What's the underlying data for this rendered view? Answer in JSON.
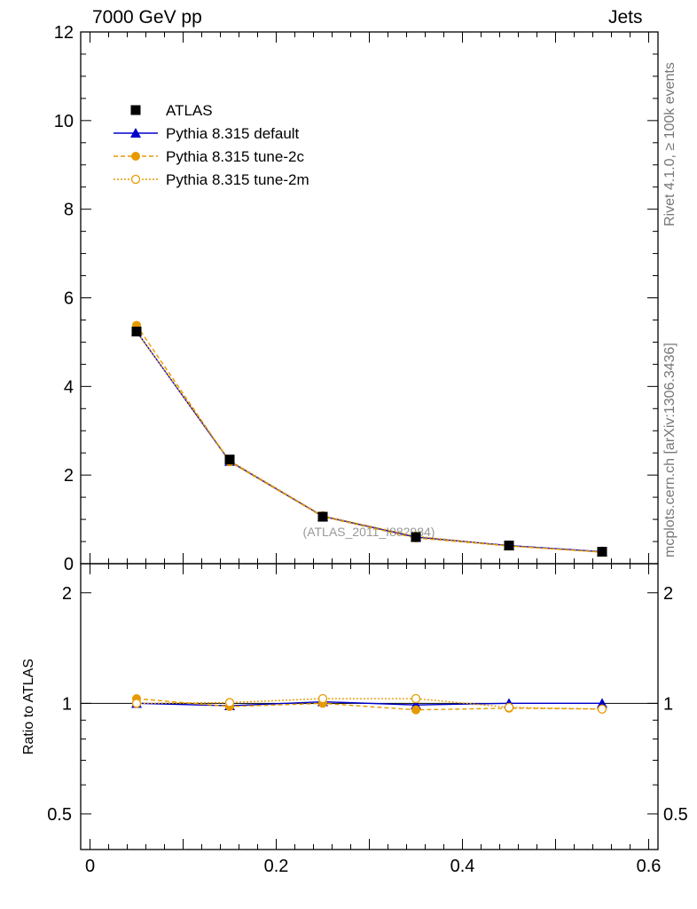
{
  "header": {
    "left_label": "7000 GeV pp",
    "right_label": "Jets"
  },
  "side_labels": {
    "rivet": "Rivet 4.1.0, ≥ 100k events",
    "mcplots": "mcplots.cern.ch [arXiv:1306.3436]"
  },
  "chart_data": {
    "type": "line",
    "analysis_label": "(ATLAS_2011_I882984)",
    "x": [
      0.05,
      0.15,
      0.25,
      0.35,
      0.45,
      0.55
    ],
    "xlim": [
      -0.01,
      0.61
    ],
    "xticks": [
      0,
      0.2,
      0.4,
      0.6
    ],
    "xtick_labels": [
      "0",
      "0.2",
      "0.4",
      "0.6"
    ],
    "main": {
      "ylim": [
        0,
        12
      ],
      "yticks": [
        0,
        2,
        4,
        6,
        8,
        10,
        12
      ],
      "ytick_labels": [
        "0",
        "2",
        "4",
        "6",
        "8",
        "10",
        "12"
      ]
    },
    "ratio": {
      "ylabel": "Ratio to ATLAS",
      "ylim": [
        0.4,
        2.4
      ],
      "yticks": [
        0.5,
        1,
        2
      ],
      "ytick_labels": [
        "0.5",
        "1",
        "2"
      ]
    },
    "series": [
      {
        "name": "ATLAS",
        "color": "#000000",
        "marker": "square",
        "line": "none",
        "values": [
          5.24,
          2.35,
          1.06,
          0.6,
          0.41,
          0.27
        ],
        "ratio": [
          1.0,
          1.0,
          1.0,
          1.0,
          1.0,
          1.0
        ]
      },
      {
        "name": "Pythia 8.315 default",
        "color": "#0000cc",
        "marker": "triangle",
        "line": "solid",
        "values": [
          5.24,
          2.31,
          1.07,
          0.6,
          0.41,
          0.27
        ],
        "ratio": [
          1.0,
          0.985,
          1.01,
          0.99,
          1.0,
          1.0
        ]
      },
      {
        "name": "Pythia 8.315 tune-2c",
        "color": "#e69a00",
        "marker": "circle-filled",
        "line": "dashed",
        "values": [
          5.38,
          2.3,
          1.06,
          0.58,
          0.4,
          0.26
        ],
        "ratio": [
          1.03,
          0.98,
          1.0,
          0.96,
          0.97,
          0.965
        ]
      },
      {
        "name": "Pythia 8.315 tune-2m",
        "color": "#e69a00",
        "marker": "circle-open",
        "line": "dotted",
        "values": [
          5.24,
          2.33,
          1.08,
          0.62,
          0.4,
          0.26
        ],
        "ratio": [
          1.0,
          1.005,
          1.03,
          1.03,
          0.975,
          0.965
        ]
      }
    ]
  }
}
